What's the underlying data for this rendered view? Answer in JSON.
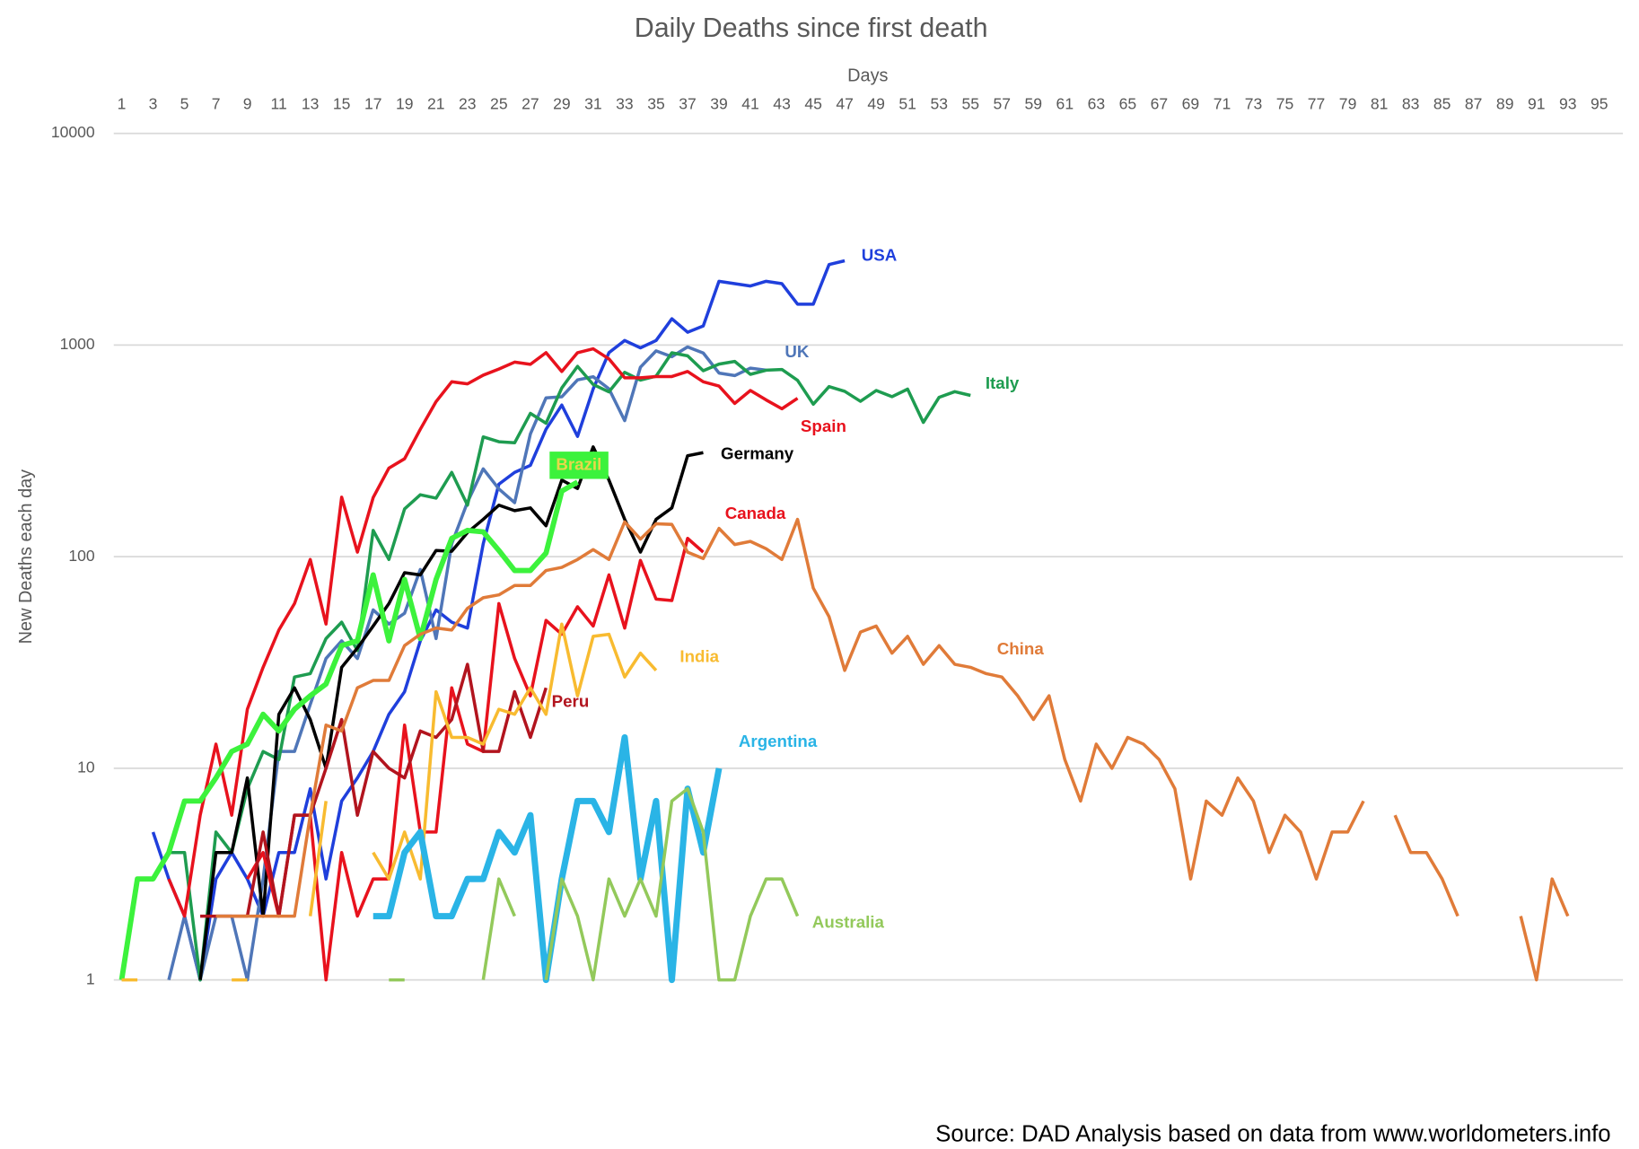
{
  "chart_data": {
    "type": "line",
    "title": "Daily Deaths since first death",
    "x_label": "Days",
    "y_label": "New Deaths each day",
    "source": "Source: DAD Analysis based on data from www.worldometers.info",
    "log_y": true,
    "grid": true,
    "xlim": [
      0.5,
      96.5
    ],
    "ylim": [
      1,
      10000
    ],
    "xticks": [
      1,
      3,
      5,
      7,
      9,
      11,
      13,
      15,
      17,
      19,
      21,
      23,
      25,
      27,
      29,
      31,
      33,
      35,
      37,
      39,
      41,
      43,
      45,
      47,
      49,
      51,
      53,
      55,
      57,
      59,
      61,
      63,
      65,
      67,
      69,
      71,
      73,
      75,
      77,
      79,
      81,
      83,
      85,
      87,
      89,
      91,
      93,
      95
    ],
    "yticks": [
      1,
      10,
      100,
      1000,
      10000
    ],
    "series": [
      {
        "name": "USA",
        "color": "#1f3fdc",
        "x": [
          3,
          4,
          5,
          6,
          7,
          8,
          9,
          10,
          11,
          12,
          13,
          14,
          15,
          16,
          17,
          18,
          19,
          20,
          21,
          22,
          23,
          24,
          25,
          26,
          27,
          28,
          29,
          30,
          31,
          32,
          33,
          34,
          35,
          36,
          37,
          38,
          39,
          40,
          41,
          42,
          43,
          44,
          45,
          46,
          47
        ],
        "values": [
          5,
          3,
          2,
          1,
          3,
          4,
          3,
          2,
          4,
          4,
          8,
          3,
          7,
          9,
          12,
          18,
          23,
          40,
          56,
          49,
          46,
          115,
          220,
          250,
          270,
          400,
          520,
          370,
          620,
          920,
          1050,
          970,
          1050,
          1330,
          1150,
          1230,
          2000,
          1950,
          1900,
          2000,
          1950,
          1560,
          1560,
          2400,
          2500
        ]
      },
      {
        "name": "UK",
        "color": "#4f76b8",
        "x": [
          4,
          5,
          6,
          7,
          8,
          9,
          10,
          11,
          12,
          13,
          14,
          15,
          16,
          17,
          18,
          19,
          20,
          21,
          22,
          23,
          24,
          25,
          26,
          27,
          28,
          29,
          30,
          31,
          32,
          33,
          34,
          35,
          36,
          37,
          38,
          39,
          40,
          41,
          42
        ],
        "values": [
          1,
          2,
          1,
          2,
          2,
          1,
          3,
          12,
          12,
          20,
          33,
          40,
          33,
          56,
          48,
          54,
          87,
          41,
          115,
          181,
          260,
          209,
          180,
          380,
          563,
          569,
          684,
          708,
          621,
          439,
          786,
          938,
          881,
          980,
          917,
          737,
          717,
          778,
          761
        ]
      },
      {
        "name": "Italy",
        "color": "#1e9c50",
        "x": [
          1,
          2,
          3,
          4,
          5,
          6,
          7,
          8,
          9,
          10,
          11,
          12,
          13,
          14,
          15,
          16,
          17,
          18,
          19,
          20,
          21,
          22,
          23,
          24,
          25,
          26,
          27,
          28,
          29,
          30,
          31,
          32,
          33,
          34,
          35,
          36,
          37,
          38,
          39,
          40,
          41,
          42,
          43,
          44,
          45,
          46,
          47,
          48,
          49,
          50,
          51,
          52,
          53,
          54,
          55
        ],
        "values": [
          1,
          3,
          3,
          4,
          4,
          1,
          5,
          4,
          8,
          12,
          11,
          27,
          28,
          41,
          49,
          36,
          133,
          97,
          168,
          196,
          189,
          250,
          175,
          368,
          349,
          345,
          475,
          427,
          627,
          793,
          651,
          601,
          743,
          683,
          712,
          919,
          889,
          756,
          812,
          837,
          727,
          760,
          766,
          681,
          525,
          636,
          604,
          542,
          610,
          570,
          619,
          431,
          566,
          602,
          578
        ]
      },
      {
        "name": "Spain",
        "color": "#e8121d",
        "x": [
          4,
          5,
          6,
          7,
          8,
          9,
          10,
          11,
          12,
          13,
          14,
          15,
          16,
          17,
          18,
          19,
          20,
          21,
          22,
          23,
          24,
          25,
          26,
          27,
          28,
          29,
          30,
          31,
          32,
          33,
          34,
          35,
          36,
          37,
          38,
          39,
          40,
          41,
          42,
          43,
          44
        ],
        "values": [
          3,
          2,
          6,
          13,
          6,
          19,
          30,
          45,
          60,
          97,
          48,
          191,
          105,
          190,
          262,
          290,
          400,
          540,
          670,
          655,
          720,
          770,
          830,
          810,
          920,
          750,
          920,
          960,
          860,
          700,
          700,
          710,
          710,
          750,
          670,
          640,
          530,
          610,
          550,
          500,
          560
        ]
      },
      {
        "name": "Germany",
        "color": "#000000",
        "x": [
          6,
          7,
          8,
          9,
          10,
          11,
          12,
          13,
          14,
          15,
          16,
          17,
          18,
          19,
          20,
          21,
          22,
          23,
          24,
          25,
          26,
          27,
          28,
          29,
          30,
          31,
          32,
          33,
          34,
          35,
          36,
          37,
          38
        ],
        "values": [
          1,
          4,
          4,
          9,
          2,
          18,
          24,
          17,
          10,
          30,
          37,
          47,
          60,
          84,
          82,
          107,
          106,
          130,
          150,
          175,
          165,
          170,
          140,
          230,
          210,
          330,
          230,
          150,
          105,
          150,
          170,
          300,
          310
        ]
      },
      {
        "name": "Brazil",
        "color": "#3cf23c",
        "x": [
          1,
          2,
          3,
          4,
          5,
          6,
          7,
          8,
          9,
          10,
          11,
          12,
          13,
          14,
          15,
          16,
          17,
          18,
          19,
          20,
          21,
          22,
          23,
          24,
          25,
          26,
          27,
          28,
          29,
          30
        ],
        "values": [
          1,
          3,
          3,
          4,
          7,
          7,
          9,
          12,
          13,
          18,
          15,
          19,
          22,
          25,
          38,
          40,
          82,
          40,
          78,
          41,
          78,
          122,
          133,
          131,
          107,
          86,
          86,
          104,
          204,
          225
        ]
      },
      {
        "name": "Canada",
        "color": "#e8121d",
        "x": [
          9,
          10,
          11,
          12,
          13,
          14,
          15,
          16,
          17,
          18,
          19,
          20,
          21,
          22,
          23,
          24,
          25,
          26,
          27,
          28,
          29,
          30,
          31,
          32,
          33,
          34,
          35,
          36,
          37,
          38
        ],
        "values": [
          3,
          4,
          2,
          6,
          6,
          1,
          4,
          2,
          3,
          3,
          16,
          5,
          5,
          24,
          13,
          12,
          60,
          33,
          22,
          50,
          43,
          58,
          47,
          82,
          46,
          96,
          63,
          62,
          122,
          105
        ]
      },
      {
        "name": "Peru",
        "color": "#b2141e",
        "x": [
          6,
          7,
          8,
          9,
          10,
          11,
          12,
          13,
          14,
          15,
          16,
          17,
          18,
          19,
          20,
          21,
          22,
          23,
          24,
          25,
          26,
          27,
          28
        ],
        "values": [
          2,
          2,
          2,
          2,
          5,
          2,
          6,
          6,
          10,
          17,
          6,
          12,
          10,
          9,
          15,
          14,
          17,
          31,
          12,
          12,
          23,
          14,
          24
        ]
      },
      {
        "name": "India",
        "color": "#f8bb30",
        "x": [
          1,
          2,
          3,
          4,
          5,
          6,
          7,
          8,
          9,
          10,
          11,
          12,
          13,
          14,
          15,
          16,
          17,
          18,
          19,
          20,
          21,
          22,
          23,
          24,
          25,
          26,
          27,
          28,
          29,
          30,
          31,
          32,
          33,
          34,
          35
        ],
        "values": [
          1,
          1,
          null,
          null,
          null,
          null,
          null,
          1,
          1,
          null,
          null,
          null,
          2,
          7,
          null,
          null,
          4,
          3,
          5,
          3,
          23,
          14,
          14,
          13,
          19,
          18,
          24,
          18,
          48,
          22,
          42,
          43,
          27,
          35,
          29
        ]
      },
      {
        "name": "China",
        "color": "#e07b39",
        "x": [
          7,
          8,
          9,
          10,
          11,
          12,
          13,
          14,
          15,
          16,
          17,
          18,
          19,
          20,
          21,
          22,
          23,
          24,
          25,
          26,
          27,
          28,
          29,
          30,
          31,
          32,
          33,
          34,
          35,
          36,
          37,
          38,
          39,
          40,
          41,
          42,
          43,
          44,
          45,
          46,
          47,
          48,
          49,
          50,
          51,
          52,
          53,
          54,
          55,
          56,
          57,
          58,
          59,
          60,
          61,
          62,
          63,
          64,
          65,
          66,
          67,
          68,
          69,
          70,
          71,
          72,
          73,
          74,
          75,
          76,
          77,
          78,
          79,
          80,
          81,
          82,
          83,
          84,
          85,
          86,
          87,
          88,
          89,
          90,
          91,
          92,
          93
        ],
        "values": [
          2,
          2,
          2,
          2,
          2,
          2,
          6,
          16,
          15,
          24,
          26,
          26,
          38,
          43,
          46,
          45,
          57,
          64,
          66,
          73,
          73,
          86,
          89,
          97,
          108,
          97,
          146,
          121,
          143,
          142,
          105,
          98,
          136,
          114,
          118,
          109,
          97,
          150,
          71,
          52,
          29,
          44,
          47,
          35,
          42,
          31,
          38,
          31,
          30,
          28,
          27,
          22,
          17,
          22,
          11,
          7,
          13,
          10,
          14,
          13,
          11,
          8,
          3,
          7,
          6,
          9,
          7,
          4,
          6,
          5,
          3,
          5,
          5,
          7,
          null,
          6,
          4,
          4,
          3,
          2,
          null,
          null,
          null,
          2,
          1,
          3,
          2
        ]
      },
      {
        "name": "Argentina",
        "color": "#2ab4e6",
        "x": [
          17,
          18,
          19,
          20,
          21,
          22,
          23,
          24,
          25,
          26,
          27,
          28,
          29,
          30,
          31,
          32,
          33,
          34,
          35,
          36,
          37,
          38,
          39
        ],
        "values": [
          2,
          2,
          4,
          5,
          2,
          2,
          3,
          3,
          5,
          4,
          6,
          1,
          3,
          7,
          7,
          5,
          14,
          3,
          7,
          1,
          8,
          4,
          10
        ]
      },
      {
        "name": "Australia",
        "color": "#93c95b",
        "x": [
          18,
          19,
          20,
          21,
          22,
          23,
          24,
          25,
          26,
          27,
          28,
          29,
          30,
          31,
          32,
          33,
          34,
          35,
          36,
          37,
          38,
          39,
          40,
          41,
          42,
          43,
          44
        ],
        "values": [
          1,
          1,
          null,
          null,
          null,
          null,
          1,
          3,
          2,
          null,
          1,
          3,
          2,
          1,
          3,
          2,
          3,
          2,
          7,
          8,
          5,
          1,
          1,
          2,
          3,
          3,
          2
        ]
      }
    ]
  }
}
